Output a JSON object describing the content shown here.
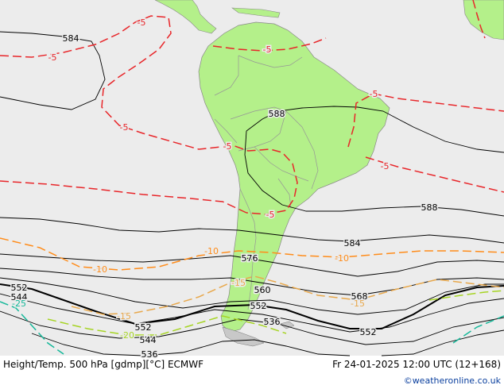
{
  "footer": {
    "product": "Height/Temp. 500 hPa [gdmp][°C] ECMWF",
    "valid_time": "Fr 24-01-2025 12:00 UTC (12+168)"
  },
  "credit": "©weatheronline.co.uk",
  "colors": {
    "ocean": "#ececec",
    "land": "#b4f08a",
    "gray_land": "#c8c8c8",
    "border": "#969696",
    "height_contour": "#000000",
    "temp_minus5": "#e8262a",
    "temp_minus10": "#ff8c1a",
    "temp_minus15": "#e8a84c",
    "temp_minus20": "#a6d424",
    "temp_minus25": "#16b89a"
  },
  "height_labels": [
    "584",
    "588",
    "588",
    "584",
    "576",
    "568",
    "560",
    "552",
    "552",
    "552",
    "552",
    "544",
    "544",
    "536",
    "536"
  ],
  "temp_labels": [
    "-5",
    "-5",
    "-5",
    "-5",
    "-5",
    "-5",
    "-5",
    "-5",
    "-10",
    "-10",
    "-10",
    "-15",
    "-15",
    "-15",
    "-20",
    "-25"
  ]
}
